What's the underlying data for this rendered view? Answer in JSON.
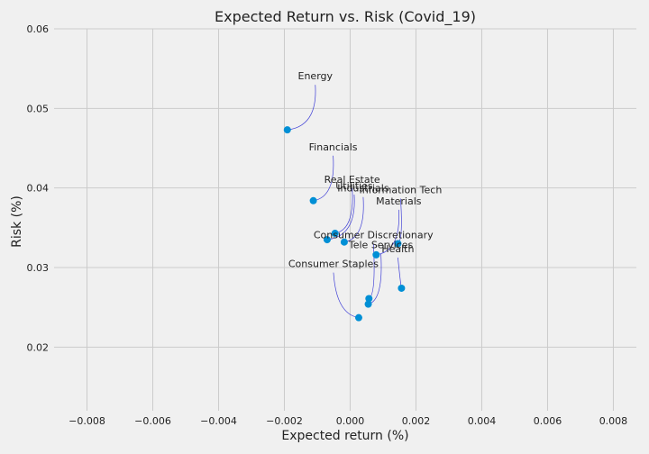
{
  "chart_data": {
    "type": "scatter",
    "title": "Expected Return vs. Risk (Covid_19)",
    "xlabel": "Expected return (%)",
    "ylabel": "Risk (%)",
    "xlim": [
      -0.009,
      0.0087
    ],
    "ylim": [
      0.012,
      0.06
    ],
    "xticks": [
      -0.008,
      -0.006,
      -0.004,
      -0.002,
      0.0,
      0.002,
      0.004,
      0.006,
      0.008
    ],
    "xtick_labels": [
      "−0.008",
      "−0.006",
      "−0.004",
      "−0.002",
      "0.000",
      "0.002",
      "0.004",
      "0.006",
      "0.008"
    ],
    "yticks": [
      0.02,
      0.03,
      0.04,
      0.05,
      0.06
    ],
    "ytick_labels": [
      "0.02",
      "0.03",
      "0.04",
      "0.05",
      "0.06"
    ],
    "grid": true,
    "point_color": "#008fd5",
    "leader_color": "#3f3fd6",
    "points": [
      {
        "label": "Energy",
        "x": -0.00191,
        "y": 0.0473
      },
      {
        "label": "Financials",
        "x": -0.00112,
        "y": 0.0384
      },
      {
        "label": "Real Estate",
        "x": -0.00046,
        "y": 0.0343
      },
      {
        "label": "Utilities",
        "x": -0.0007,
        "y": 0.0335
      },
      {
        "label": "Industrials",
        "x": -0.00018,
        "y": 0.0332
      },
      {
        "label": "Information Tech",
        "x": 0.00145,
        "y": 0.033
      },
      {
        "label": "Materials",
        "x": 0.00079,
        "y": 0.0316
      },
      {
        "label": "Consumer Discretionary",
        "x": 0.00057,
        "y": 0.0261
      },
      {
        "label": "Tele Services",
        "x": 0.00055,
        "y": 0.0254
      },
      {
        "label": "Health",
        "x": 0.00156,
        "y": 0.0274
      },
      {
        "label": "Consumer Staples",
        "x": 0.00026,
        "y": 0.0237
      }
    ]
  }
}
